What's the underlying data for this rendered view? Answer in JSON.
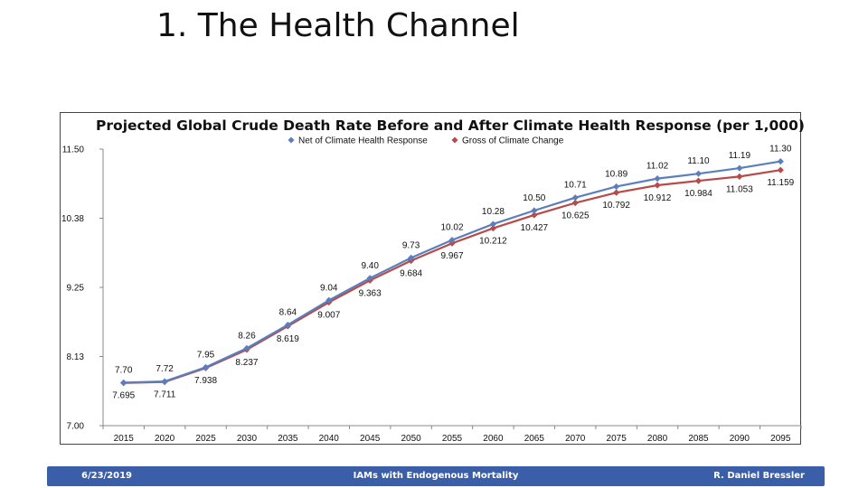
{
  "slide": {
    "title": "1. The Health Channel"
  },
  "footer": {
    "date": "6/23/2019",
    "center": "IAMs with Endogenous Mortality",
    "author": "R. Daniel Bressler"
  },
  "chart_data": {
    "type": "line",
    "title": "Projected Global Crude Death Rate Before and After Climate Health Response (per 1,000)",
    "xlabel": "",
    "ylabel": "",
    "x": [
      "2015",
      "2020",
      "2025",
      "2030",
      "2035",
      "2040",
      "2045",
      "2050",
      "2055",
      "2060",
      "2065",
      "2070",
      "2075",
      "2080",
      "2085",
      "2090",
      "2095"
    ],
    "ylim": [
      7.0,
      11.5
    ],
    "yticks": [
      "7.00",
      "8.13",
      "9.25",
      "10.38",
      "11.50"
    ],
    "ytick_values": [
      7.0,
      8.125,
      9.25,
      10.375,
      11.5
    ],
    "grid": false,
    "legend": "top-center",
    "series": [
      {
        "name": "Net of Climate Health Response",
        "color": "#5b7fbd",
        "marker": "diamond",
        "label_position": "above",
        "values": [
          7.7,
          7.72,
          7.95,
          8.26,
          8.64,
          9.04,
          9.4,
          9.73,
          10.02,
          10.28,
          10.5,
          10.71,
          10.89,
          11.02,
          11.1,
          11.19,
          11.3
        ],
        "labels": [
          "7.70",
          "7.72",
          "7.95",
          "8.26",
          "8.64",
          "9.04",
          "9.40",
          "9.73",
          "10.02",
          "10.28",
          "10.50",
          "10.71",
          "10.89",
          "11.02",
          "11.10",
          "11.19",
          "11.30"
        ]
      },
      {
        "name": "Gross of Climate Change",
        "color": "#b84a48",
        "marker": "diamond",
        "label_position": "below",
        "values": [
          7.695,
          7.711,
          7.938,
          8.237,
          8.619,
          9.007,
          9.363,
          9.684,
          9.967,
          10.212,
          10.427,
          10.625,
          10.792,
          10.912,
          10.984,
          11.053,
          11.159
        ],
        "labels": [
          "7.695",
          "7.711",
          "7.938",
          "8.237",
          "8.619",
          "9.007",
          "9.363",
          "9.684",
          "9.967",
          "10.212",
          "10.427",
          "10.625",
          "10.792",
          "10.912",
          "10.984",
          "11.053",
          "11.159"
        ]
      }
    ]
  }
}
